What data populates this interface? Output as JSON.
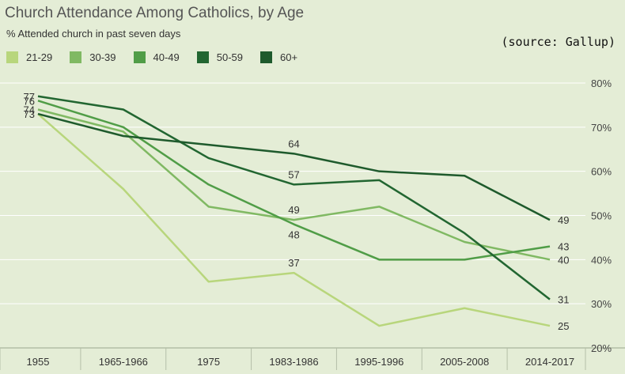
{
  "chart_data": {
    "type": "line",
    "title": "Church Attendance Among Catholics, by Age",
    "subtitle": "% Attended church in past seven days",
    "source": "(source: Gallup)",
    "categories": [
      "1955",
      "1965-1966",
      "1975",
      "1983-1986",
      "1995-1996",
      "2005-2008",
      "2014-2017"
    ],
    "ylim": [
      20,
      80
    ],
    "yticks": [
      20,
      30,
      40,
      50,
      60,
      70,
      80
    ],
    "ytick_labels": [
      "20%",
      "30%",
      "40%",
      "50%",
      "60%",
      "70%",
      "80%"
    ],
    "legend_position": "top-left",
    "grid": true,
    "series": [
      {
        "name": "21-29",
        "color": "#b8d67c",
        "values": [
          73,
          56,
          35,
          37,
          25,
          29,
          25
        ],
        "labels": {
          "3": "37",
          "6": "25"
        }
      },
      {
        "name": "30-39",
        "color": "#80b963",
        "values": [
          74,
          69,
          52,
          49,
          52,
          44,
          40
        ],
        "labels": {
          "0": "74",
          "3": "49",
          "6": "40"
        }
      },
      {
        "name": "40-49",
        "color": "#509d47",
        "values": [
          76,
          70,
          57,
          48,
          40,
          40,
          43
        ],
        "labels": {
          "0": "76",
          "3": "48",
          "6": "43"
        }
      },
      {
        "name": "50-59",
        "color": "#226631",
        "values": [
          77,
          74,
          63,
          57,
          58,
          46,
          31
        ],
        "labels": {
          "0": "77",
          "3": "57",
          "6": "31"
        }
      },
      {
        "name": "60+",
        "color": "#1e5a2c",
        "values": [
          73,
          68,
          66,
          64,
          60,
          59,
          49
        ],
        "labels": {
          "0": "73",
          "3": "64",
          "6": "49"
        }
      }
    ]
  }
}
